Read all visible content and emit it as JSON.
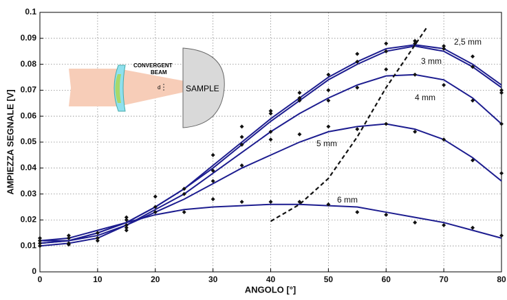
{
  "chart_data": {
    "type": "line",
    "xlabel": "ANGOLO [°]",
    "ylabel": "AMPIEZZA SEGNALE [V]",
    "xlim": [
      0,
      80
    ],
    "ylim": [
      0,
      0.1
    ],
    "xticks": [
      0,
      10,
      20,
      30,
      40,
      50,
      60,
      70,
      80
    ],
    "yticks": [
      0,
      0.01,
      0.02,
      0.03,
      0.04,
      0.05,
      0.06,
      0.07,
      0.08,
      0.09,
      0.1
    ],
    "grid": true,
    "x": [
      0,
      5,
      10,
      15,
      20,
      25,
      30,
      35,
      40,
      45,
      50,
      55,
      60,
      65,
      70,
      75,
      80
    ],
    "series": [
      {
        "name": "2,5 mm",
        "color": "#1c1c8f",
        "values": [
          0.012,
          0.012,
          0.015,
          0.019,
          0.025,
          0.032,
          0.041,
          0.05,
          0.059,
          0.067,
          0.075,
          0.081,
          0.086,
          0.0875,
          0.086,
          0.08,
          0.072
        ]
      },
      {
        "name": "3 mm",
        "color": "#1c1c8f",
        "values": [
          0.011,
          0.012,
          0.015,
          0.019,
          0.025,
          0.032,
          0.04,
          0.049,
          0.058,
          0.066,
          0.074,
          0.08,
          0.085,
          0.087,
          0.085,
          0.079,
          0.071
        ]
      },
      {
        "name": "4 mm",
        "color": "#1c1c8f",
        "values": [
          0.01,
          0.011,
          0.013,
          0.018,
          0.024,
          0.03,
          0.038,
          0.046,
          0.054,
          0.061,
          0.067,
          0.072,
          0.0755,
          0.076,
          0.074,
          0.067,
          0.057
        ]
      },
      {
        "name": "5 mm",
        "color": "#1c1c8f",
        "values": [
          0.011,
          0.012,
          0.014,
          0.018,
          0.023,
          0.028,
          0.034,
          0.04,
          0.045,
          0.05,
          0.054,
          0.056,
          0.057,
          0.055,
          0.051,
          0.044,
          0.035
        ]
      },
      {
        "name": "6 mm",
        "color": "#1c1c8f",
        "values": [
          0.012,
          0.013,
          0.016,
          0.019,
          0.022,
          0.024,
          0.025,
          0.0255,
          0.026,
          0.026,
          0.0255,
          0.025,
          0.023,
          0.021,
          0.019,
          0.016,
          0.013
        ]
      }
    ],
    "measured": {
      "color": "#111111",
      "x": [
        0,
        0,
        0,
        0,
        5,
        5,
        5,
        5,
        10,
        10,
        10,
        15,
        15,
        15,
        15,
        15,
        20,
        20,
        20,
        25,
        25,
        25,
        30,
        30,
        30,
        30,
        35,
        35,
        35,
        35,
        35,
        40,
        40,
        40,
        40,
        40,
        45,
        45,
        45,
        45,
        45,
        50,
        50,
        50,
        50,
        50,
        55,
        55,
        55,
        55,
        55,
        60,
        60,
        60,
        60,
        60,
        65,
        65,
        65,
        65,
        65,
        70,
        70,
        70,
        70,
        70,
        75,
        75,
        75,
        75,
        75,
        80,
        80,
        80,
        80,
        80
      ],
      "y": [
        0.013,
        0.012,
        0.011,
        0.01,
        0.014,
        0.013,
        0.011,
        0.0105,
        0.015,
        0.013,
        0.012,
        0.021,
        0.02,
        0.018,
        0.017,
        0.016,
        0.029,
        0.025,
        0.023,
        0.032,
        0.03,
        0.023,
        0.045,
        0.039,
        0.035,
        0.028,
        0.056,
        0.052,
        0.049,
        0.041,
        0.027,
        0.062,
        0.061,
        0.054,
        0.051,
        0.027,
        0.069,
        0.067,
        0.066,
        0.053,
        0.027,
        0.076,
        0.07,
        0.066,
        0.056,
        0.026,
        0.084,
        0.081,
        0.071,
        0.055,
        0.023,
        0.088,
        0.085,
        0.078,
        0.057,
        0.022,
        0.089,
        0.088,
        0.076,
        0.054,
        0.019,
        0.087,
        0.086,
        0.072,
        0.051,
        0.018,
        0.083,
        0.079,
        0.066,
        0.043,
        0.017,
        0.07,
        0.069,
        0.057,
        0.038,
        0.014
      ]
    },
    "boundary": {
      "color": "#111111",
      "x": [
        40,
        45,
        50,
        55,
        60,
        67
      ],
      "y": [
        0.0195,
        0.026,
        0.036,
        0.052,
        0.071,
        0.094
      ]
    },
    "inset": {
      "beam_label": [
        "CONVERGENT",
        "BEAM"
      ],
      "sample_label": "SAMPLE",
      "distance_label": "d"
    }
  }
}
